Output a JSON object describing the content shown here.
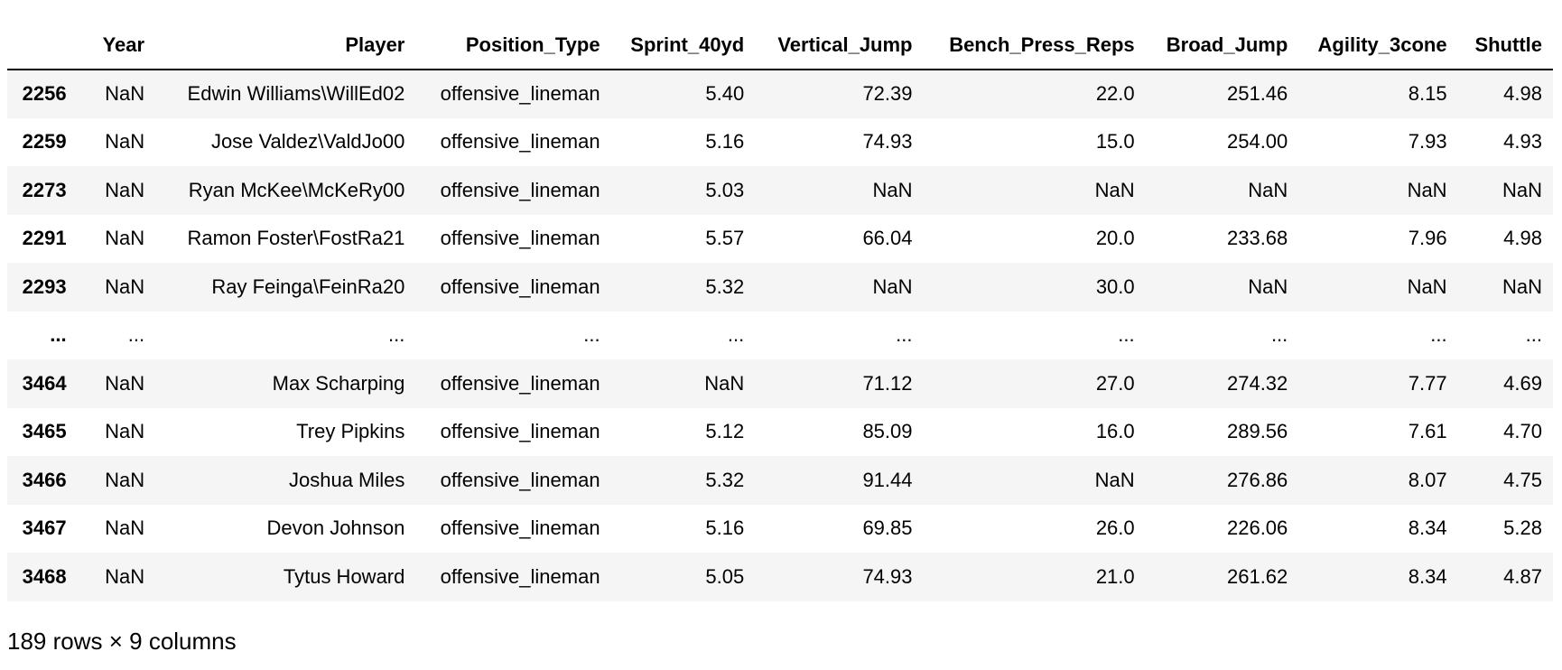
{
  "columns": [
    "",
    "Year",
    "Player",
    "Position_Type",
    "Sprint_40yd",
    "Vertical_Jump",
    "Bench_Press_Reps",
    "Broad_Jump",
    "Agility_3cone",
    "Shuttle"
  ],
  "rows": [
    {
      "index": "2256",
      "cells": [
        "NaN",
        "Edwin Williams\\WillEd02",
        "offensive_lineman",
        "5.40",
        "72.39",
        "22.0",
        "251.46",
        "8.15",
        "4.98"
      ]
    },
    {
      "index": "2259",
      "cells": [
        "NaN",
        "Jose Valdez\\ValdJo00",
        "offensive_lineman",
        "5.16",
        "74.93",
        "15.0",
        "254.00",
        "7.93",
        "4.93"
      ]
    },
    {
      "index": "2273",
      "cells": [
        "NaN",
        "Ryan McKee\\McKeRy00",
        "offensive_lineman",
        "5.03",
        "NaN",
        "NaN",
        "NaN",
        "NaN",
        "NaN"
      ]
    },
    {
      "index": "2291",
      "cells": [
        "NaN",
        "Ramon Foster\\FostRa21",
        "offensive_lineman",
        "5.57",
        "66.04",
        "20.0",
        "233.68",
        "7.96",
        "4.98"
      ]
    },
    {
      "index": "2293",
      "cells": [
        "NaN",
        "Ray Feinga\\FeinRa20",
        "offensive_lineman",
        "5.32",
        "NaN",
        "30.0",
        "NaN",
        "NaN",
        "NaN"
      ]
    },
    {
      "index": "...",
      "cells": [
        "...",
        "...",
        "...",
        "...",
        "...",
        "...",
        "...",
        "...",
        "..."
      ]
    },
    {
      "index": "3464",
      "cells": [
        "NaN",
        "Max Scharping",
        "offensive_lineman",
        "NaN",
        "71.12",
        "27.0",
        "274.32",
        "7.77",
        "4.69"
      ]
    },
    {
      "index": "3465",
      "cells": [
        "NaN",
        "Trey Pipkins",
        "offensive_lineman",
        "5.12",
        "85.09",
        "16.0",
        "289.56",
        "7.61",
        "4.70"
      ]
    },
    {
      "index": "3466",
      "cells": [
        "NaN",
        "Joshua Miles",
        "offensive_lineman",
        "5.32",
        "91.44",
        "NaN",
        "276.86",
        "8.07",
        "4.75"
      ]
    },
    {
      "index": "3467",
      "cells": [
        "NaN",
        "Devon Johnson",
        "offensive_lineman",
        "5.16",
        "69.85",
        "26.0",
        "226.06",
        "8.34",
        "5.28"
      ]
    },
    {
      "index": "3468",
      "cells": [
        "NaN",
        "Tytus Howard",
        "offensive_lineman",
        "5.05",
        "74.93",
        "21.0",
        "261.62",
        "8.34",
        "4.87"
      ]
    }
  ],
  "shape_text": "189 rows × 9 columns",
  "colors": {
    "stripe": "#f5f5f5",
    "background": "#ffffff",
    "text": "#000000"
  }
}
